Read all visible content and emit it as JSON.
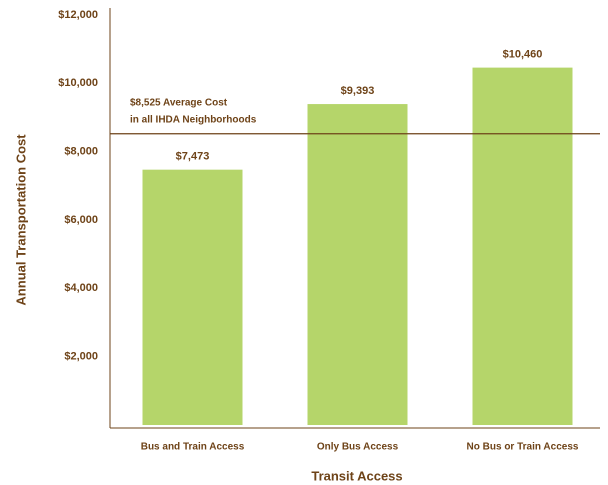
{
  "chart_data": {
    "type": "bar",
    "categories": [
      "Bus and Train Access",
      "Only Bus Access",
      "No Bus or Train Access"
    ],
    "values": [
      7473,
      9393,
      10460
    ],
    "value_labels": [
      "$7,473",
      "$9,393",
      "$10,460"
    ],
    "color": "#b5d56a",
    "x_label": "Transit Access",
    "y_label": "Annual Transportation Cost",
    "ylim": [
      0,
      12000
    ],
    "yticks": [
      {
        "value": 2000,
        "label": "$2,000"
      },
      {
        "value": 4000,
        "label": "$4,000"
      },
      {
        "value": 6000,
        "label": "$6,000"
      },
      {
        "value": 8000,
        "label": "$8,000"
      },
      {
        "value": 10000,
        "label": "$10,000"
      },
      {
        "value": 12000,
        "label": "$12,000"
      }
    ],
    "reference_line": {
      "value": 8525,
      "label_lines": [
        "$8,525 Average Cost",
        "in all IHDA Neighborhoods"
      ]
    }
  }
}
